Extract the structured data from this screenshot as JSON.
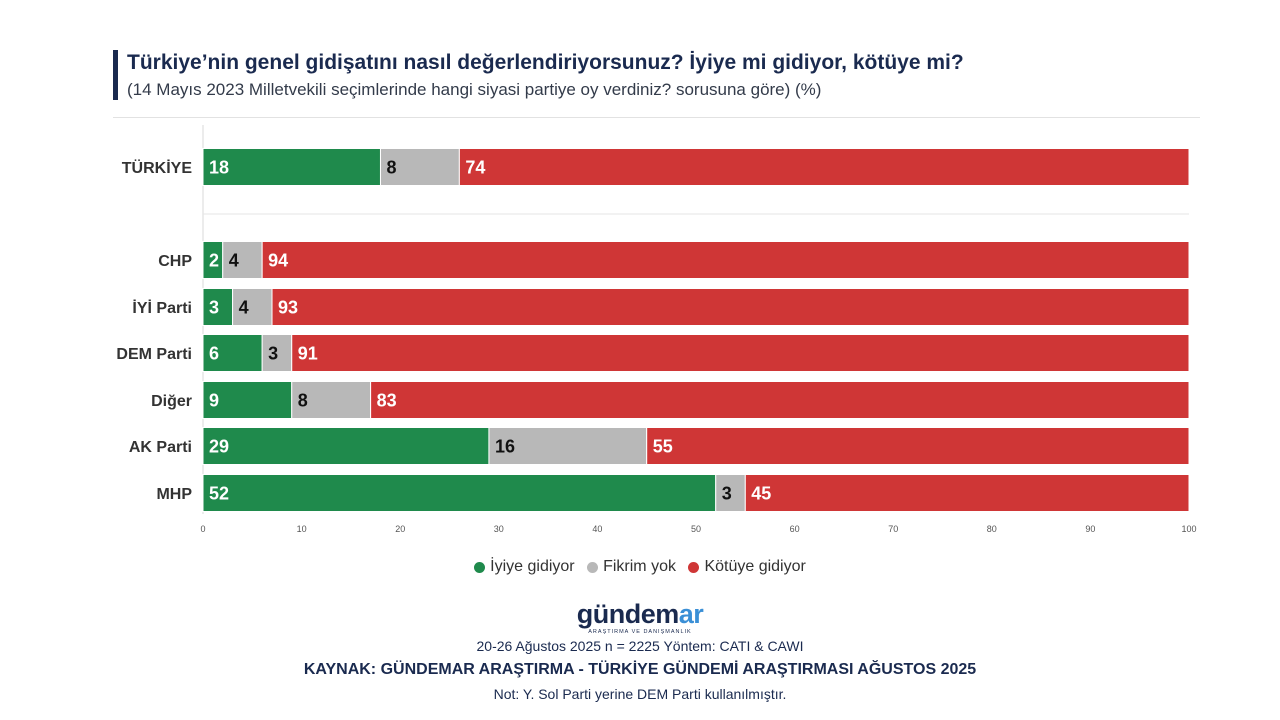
{
  "title": "Türkiye’nin genel gidişatını nasıl değerlendiriyorsunuz? İyiye mi gidiyor, kötüye mi?",
  "subtitle": "(14 Mayıs 2023 Milletvekili seçimlerinde hangi siyasi partiye oy verdiniz? sorusuna göre) (%)",
  "colors": {
    "iyi": "#1f8a4c",
    "fikrim": "#b8b8b8",
    "kotu": "#cf3636",
    "navy": "#1a2a4f"
  },
  "chart_data": {
    "type": "bar",
    "orientation": "horizontal",
    "stacked": true,
    "categories": [
      "TÜRKİYE",
      "CHP",
      "İYİ Parti",
      "DEM Parti",
      "Diğer",
      "AK Parti",
      "MHP"
    ],
    "series": [
      {
        "name": "İyiye gidiyor",
        "values": [
          18,
          2,
          3,
          6,
          9,
          29,
          52
        ]
      },
      {
        "name": "Fikrim yok",
        "values": [
          8,
          4,
          4,
          3,
          8,
          16,
          3
        ]
      },
      {
        "name": "Kötüye gidiyor",
        "values": [
          74,
          94,
          93,
          91,
          83,
          55,
          45
        ]
      }
    ],
    "xlim": [
      0,
      100
    ],
    "xticks": [
      "0",
      "10",
      "20",
      "30",
      "40",
      "50",
      "60",
      "70",
      "80",
      "90",
      "100"
    ],
    "legend_position": "bottom"
  },
  "legend": [
    {
      "label": "İyiye gidiyor",
      "color": "#1f8a4c"
    },
    {
      "label": "Fikrim yok",
      "color": "#b8b8b8"
    },
    {
      "label": "Kötüye gidiyor",
      "color": "#cf3636"
    }
  ],
  "logo": {
    "main_a": "gündem",
    "main_b": "ar",
    "sub": "ARAŞTIRMA VE DANIŞMANLIK"
  },
  "footer": {
    "line1": "20-26 Ağustos 2025 n = 2225 Yöntem: CATI & CAWI",
    "line2": "KAYNAK: GÜNDEMAR ARAŞTIRMA - TÜRKİYE GÜNDEMİ ARAŞTIRMASI AĞUSTOS 2025",
    "line3": "Not: Y. Sol Parti yerine DEM Parti kullanılmıştır."
  }
}
